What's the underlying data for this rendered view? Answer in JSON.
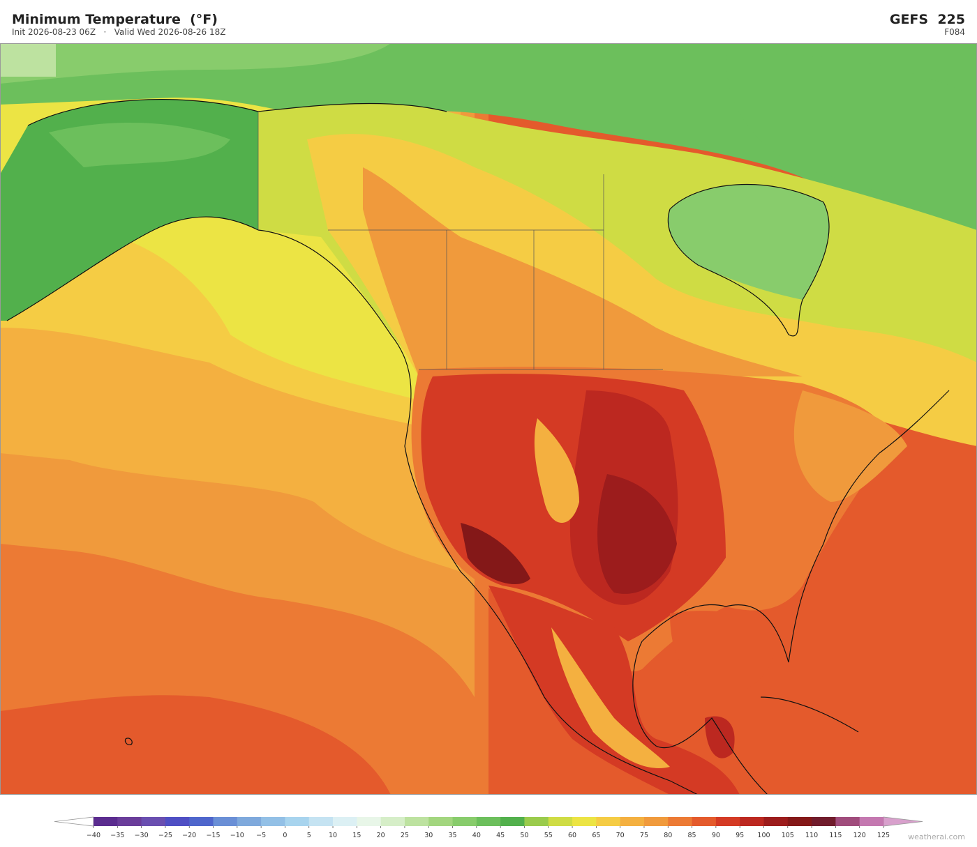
{
  "header": {
    "title": "Minimum Temperature  (°F)",
    "subtitle": "Init 2026-08-23 06Z   ·   Valid Wed 2026-08-26 18Z",
    "model": "GEFS  225",
    "forecast_hour": "F084"
  },
  "colorbar": {
    "ticks": [
      {
        "value": -40,
        "label": "−40"
      },
      {
        "value": -35,
        "label": "−35"
      },
      {
        "value": -30,
        "label": "−30"
      },
      {
        "value": -25,
        "label": "−25"
      },
      {
        "value": -20,
        "label": "−20"
      },
      {
        "value": -15,
        "label": "−15"
      },
      {
        "value": -10,
        "label": "−10"
      },
      {
        "value": -5,
        "label": "−5"
      },
      0,
      5,
      10,
      15,
      20,
      25,
      30,
      35,
      40,
      45,
      50,
      55,
      60,
      65,
      70,
      75,
      80,
      85,
      90,
      95,
      100,
      105,
      110,
      115,
      120,
      125
    ],
    "colors": [
      "#5b2c8f",
      "#6a3d9a",
      "#6a4fb0",
      "#4f4fc4",
      "#4f66cc",
      "#6a8fd6",
      "#7fa9dc",
      "#93c0e6",
      "#a8d4ee",
      "#c5e3f2",
      "#dcf0f4",
      "#e8f6e8",
      "#d6eec8",
      "#bde2a0",
      "#a3d67f",
      "#88cc6c",
      "#6cbf5c",
      "#52b04c",
      "#9acb4c",
      "#cfdc44",
      "#ece444",
      "#f5cc44",
      "#f4b040",
      "#f09a3c",
      "#ec7a34",
      "#e45a2c",
      "#d43a24",
      "#bc2820",
      "#9c1c1c",
      "#841818",
      "#701c2c",
      "#a04c7c",
      "#c478b0"
    ]
  },
  "watermark": "weatherai.com"
}
